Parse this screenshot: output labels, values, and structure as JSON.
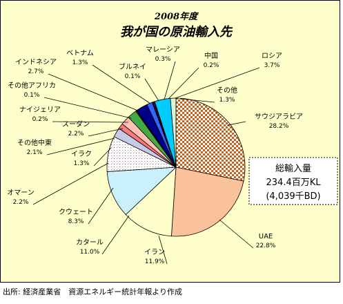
{
  "chart_data": {
    "type": "pie",
    "title": "2008年度",
    "subtitle": "我が国の原油輸入先",
    "unit": "%",
    "slices": [
      {
        "label": "サウジアラビア",
        "value": 28.2,
        "value_text": "28.2%",
        "pattern": "checker",
        "color": "#c8601c",
        "alt_color": "#ffffff"
      },
      {
        "label": "UAE",
        "value": 22.8,
        "value_text": "22.8%",
        "color": "#f9c29a"
      },
      {
        "label": "イラン",
        "value": 11.9,
        "value_text": "11.9%",
        "color": "#ffffcc"
      },
      {
        "label": "カタール",
        "value": 11.0,
        "value_text": "11.0%",
        "color": "#c9f0fb"
      },
      {
        "label": "クウェート",
        "value": 8.3,
        "value_text": "8.3%",
        "pattern": "dots",
        "color": "#ffffff",
        "alt_color": "#9a6a6a"
      },
      {
        "label": "オマーン",
        "value": 2.2,
        "value_text": "2.2%",
        "color": "#c6cce8"
      },
      {
        "label": "イラク",
        "value": 1.3,
        "value_text": "1.3%",
        "color": "#ff7a7a"
      },
      {
        "label": "その他中東",
        "value": 2.1,
        "value_text": "2.1%",
        "color": "#ffc2b2"
      },
      {
        "label": "スーダン",
        "value": 2.2,
        "value_text": "2.2%",
        "color": "#44aa44"
      },
      {
        "label": "ナイジェリア",
        "value": 0.2,
        "value_text": "0.2%",
        "color": "#8844aa"
      },
      {
        "label": "その他アフリカ",
        "value": 0.1,
        "value_text": "0.1%",
        "color": "#aa0000"
      },
      {
        "label": "インドネシア",
        "value": 2.7,
        "value_text": "2.7%",
        "color": "#000088"
      },
      {
        "label": "ベトナム",
        "value": 1.3,
        "value_text": "1.3%",
        "color": "#3366ff"
      },
      {
        "label": "ブルネイ",
        "value": 0.1,
        "value_text": "0.1%",
        "color": "#003399"
      },
      {
        "label": "マレーシア",
        "value": 0.3,
        "value_text": "0.3%",
        "color": "#660066"
      },
      {
        "label": "中国",
        "value": 0.2,
        "value_text": "0.2%",
        "color": "#cc0066"
      },
      {
        "label": "ロシア",
        "value": 3.7,
        "value_text": "3.7%",
        "color": "#00ccff"
      },
      {
        "label": "その他",
        "value": 1.3,
        "value_text": "1.3%",
        "color": "#d8f4d0"
      }
    ],
    "total_box": {
      "line1": "総輸入量",
      "line2": "234.4百万KL",
      "line3": "(4,039千BD)"
    }
  },
  "source_note": "出所: 経済産業省　資源エネルギー統計年報より作成",
  "colors": {
    "background": "#ffffcc",
    "border": "#000000",
    "text": "#000000"
  }
}
